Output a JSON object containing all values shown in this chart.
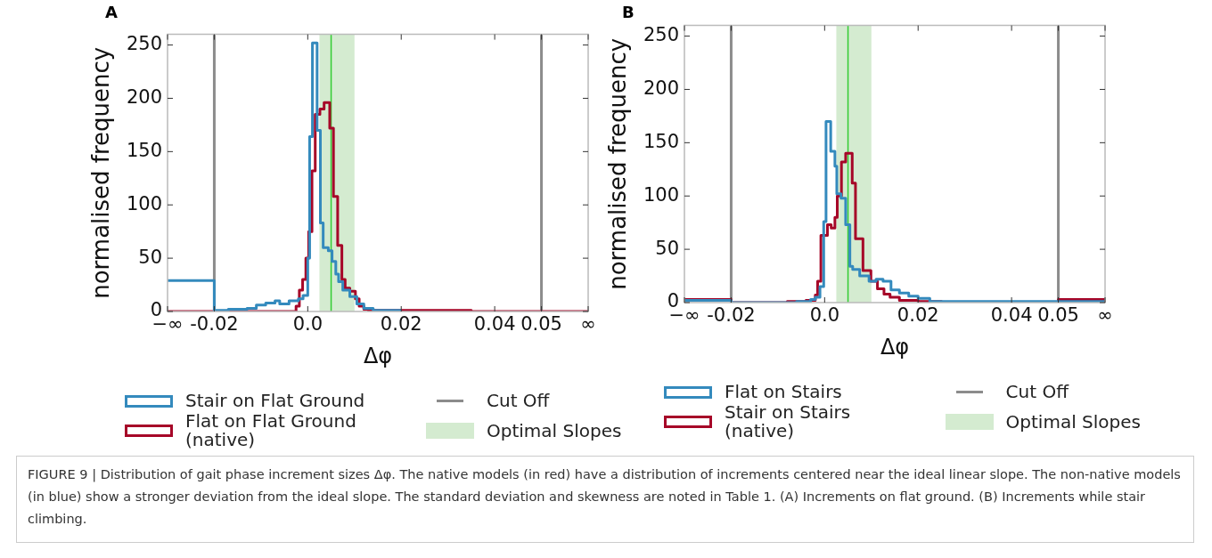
{
  "chart_data": [
    {
      "type": "step",
      "title": "A",
      "xlabel": "Δφ",
      "ylabel": "normalised frequency",
      "xlim": [
        -0.03,
        0.06
      ],
      "ylim": [
        0,
        260
      ],
      "xticks": [
        {
          "value": -0.03,
          "label": "−∞"
        },
        -0.02,
        {
          "value": 0,
          "label": "0.0"
        },
        0.02,
        0.04,
        0.05,
        {
          "value": 0.06,
          "label": "∞"
        }
      ],
      "yticks": [
        0,
        50,
        100,
        150,
        200,
        250
      ],
      "legend": "bottom",
      "ref_lines": [
        {
          "axis": "x",
          "value": -0.02,
          "label": "Cut Off",
          "color": "#8c8c8c"
        },
        {
          "axis": "x",
          "value": 0.05,
          "color": "#8c8c8c"
        },
        {
          "axis": "x",
          "value": 0.005,
          "color": "#33cc33"
        }
      ],
      "bands": [
        {
          "axis": "x",
          "from": 0.0025,
          "to": 0.01,
          "label": "Optimal Slopes",
          "color": "#d4ebd0"
        }
      ],
      "annotations": [
        "FIGURE 9 | Distribution of gait phase increment sizes Δφ. The native models (in red) have a distribution of increments centered near the ideal linear slope. The non-native models (in blue) show a stronger deviation from the ideal slope. The standard deviation and skewness are noted in Table 1. (A) Increments on flat ground. (B) Increments while stair climbing."
      ],
      "series": [
        {
          "name": "Stair on Flat Ground",
          "color": "#348abd",
          "x": [
            -0.03,
            -0.02,
            -0.017,
            -0.013,
            -0.011,
            -0.009,
            -0.007,
            -0.006,
            -0.004,
            -0.002,
            -0.001,
            0,
            0.0004,
            0.001,
            0.002,
            0.0027,
            0.0033,
            0.0044,
            0.0052,
            0.006,
            0.0066,
            0.0075,
            0.009,
            0.0105,
            0.012,
            0.014,
            0.02
          ],
          "values": [
            29,
            1,
            2,
            3,
            6,
            8,
            10,
            7,
            10,
            12,
            15,
            50,
            164,
            252,
            170,
            83,
            60,
            57,
            47,
            35,
            28,
            20,
            14,
            7,
            3,
            1,
            1
          ]
        },
        {
          "name": "Flat on Flat Ground (native)",
          "color": "#a60628",
          "x": [
            -0.03,
            -0.0025,
            -0.0018,
            -0.0011,
            -0.0004,
            0.0002,
            0.0009,
            0.0016,
            0.0026,
            0.0035,
            0.0047,
            0.0055,
            0.0064,
            0.0073,
            0.008,
            0.009,
            0.0102,
            0.011,
            0.012,
            0.013,
            0.023,
            0.035,
            0.06
          ],
          "values": [
            0,
            5,
            20,
            30,
            50,
            75,
            132,
            185,
            190,
            196,
            172,
            108,
            62,
            30,
            22,
            19,
            12,
            5,
            2,
            1,
            1,
            0,
            0
          ]
        }
      ]
    },
    {
      "type": "step",
      "title": "B",
      "xlabel": "Δφ",
      "ylabel": "normalised frequency",
      "xlim": [
        -0.03,
        0.06
      ],
      "ylim": [
        0,
        260
      ],
      "xticks": [
        {
          "value": -0.03,
          "label": "−∞"
        },
        -0.02,
        {
          "value": 0,
          "label": "0.0"
        },
        0.02,
        0.04,
        0.05,
        {
          "value": 0.06,
          "label": "∞"
        }
      ],
      "yticks": [
        0,
        50,
        100,
        150,
        200,
        250
      ],
      "legend": "bottom",
      "ref_lines": [
        {
          "axis": "x",
          "value": -0.02,
          "label": "Cut Off",
          "color": "#8c8c8c"
        },
        {
          "axis": "x",
          "value": 0.05,
          "color": "#8c8c8c"
        },
        {
          "axis": "x",
          "value": 0.005,
          "color": "#33cc33"
        }
      ],
      "bands": [
        {
          "axis": "x",
          "from": 0.0025,
          "to": 0.01,
          "label": "Optimal Slopes",
          "color": "#d4ebd0"
        }
      ],
      "series": [
        {
          "name": "Flat on Stairs",
          "color": "#348abd",
          "x": [
            -0.03,
            -0.02,
            -0.006,
            -0.003,
            -0.002,
            -0.001,
            -0.0002,
            0.0003,
            0.0013,
            0.0022,
            0.0026,
            0.0035,
            0.0045,
            0.0054,
            0.006,
            0.0075,
            0.0095,
            0.011,
            0.0125,
            0.0142,
            0.016,
            0.018,
            0.02,
            0.0225,
            0.06
          ],
          "values": [
            2,
            0,
            1,
            3,
            5,
            15,
            76,
            170,
            142,
            128,
            102,
            98,
            73,
            34,
            31,
            25,
            20,
            22,
            20,
            12,
            9,
            6,
            4,
            1,
            1
          ]
        },
        {
          "name": "Stair on Stairs (native)",
          "color": "#a60628",
          "x": [
            -0.03,
            -0.02,
            -0.008,
            -0.004,
            -0.002,
            -0.0015,
            -0.0008,
            0.0006,
            0.0014,
            0.0022,
            0.0027,
            0.0036,
            0.0045,
            0.0059,
            0.0066,
            0.0082,
            0.0099,
            0.0113,
            0.0127,
            0.014,
            0.016,
            0.02,
            0.025,
            0.05,
            0.06
          ],
          "values": [
            3,
            0,
            1,
            2,
            7,
            20,
            63,
            73,
            70,
            80,
            100,
            132,
            140,
            112,
            60,
            30,
            20,
            13,
            8,
            5,
            2,
            1,
            0,
            3,
            3
          ]
        }
      ]
    }
  ]
}
